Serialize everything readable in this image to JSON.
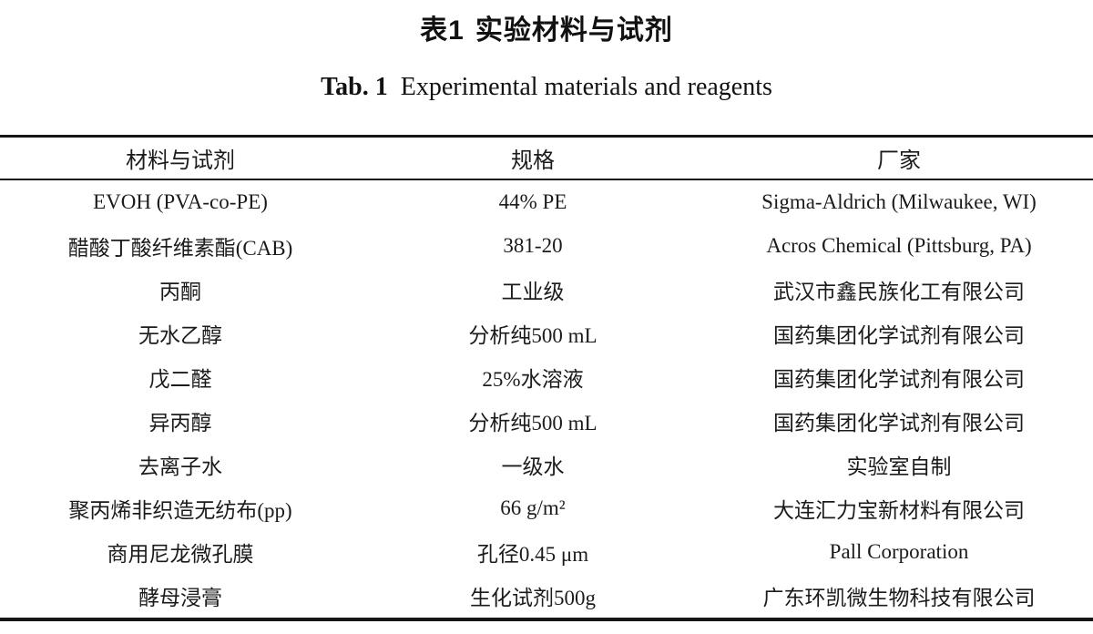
{
  "page": {
    "background_color": "#ffffff",
    "text_color": "#1b1b1b"
  },
  "titles": {
    "chinese": {
      "label": "表1",
      "text": "实验材料与试剂"
    },
    "english": {
      "label": "Tab. 1",
      "text": "Experimental materials and reagents"
    }
  },
  "table": {
    "columns": [
      "材料与试剂",
      "规格",
      "厂家"
    ],
    "rows": [
      {
        "material": "EVOH (PVA-co-PE)",
        "spec": "44% PE",
        "manufacturer": "Sigma-Aldrich (Milwaukee, WI)"
      },
      {
        "material": "醋酸丁酸纤维素酯(CAB)",
        "spec": "381-20",
        "manufacturer": "Acros Chemical (Pittsburg, PA)"
      },
      {
        "material": "丙酮",
        "spec": "工业级",
        "manufacturer": "武汉市鑫民族化工有限公司"
      },
      {
        "material": "无水乙醇",
        "spec": "分析纯500 mL",
        "manufacturer": "国药集团化学试剂有限公司"
      },
      {
        "material": "戊二醛",
        "spec": "25%水溶液",
        "manufacturer": "国药集团化学试剂有限公司"
      },
      {
        "material": "异丙醇",
        "spec": "分析纯500 mL",
        "manufacturer": "国药集团化学试剂有限公司"
      },
      {
        "material": "去离子水",
        "spec": "一级水",
        "manufacturer": "实验室自制"
      },
      {
        "material": "聚丙烯非织造无纺布(pp)",
        "spec": "66 g/m²",
        "manufacturer": "大连汇力宝新材料有限公司"
      },
      {
        "material": "商用尼龙微孔膜",
        "spec": "孔径0.45 μm",
        "manufacturer": "Pall Corporation"
      },
      {
        "material": "酵母浸膏",
        "spec": "生化试剂500g",
        "manufacturer": "广东环凯微生物科技有限公司"
      }
    ]
  }
}
